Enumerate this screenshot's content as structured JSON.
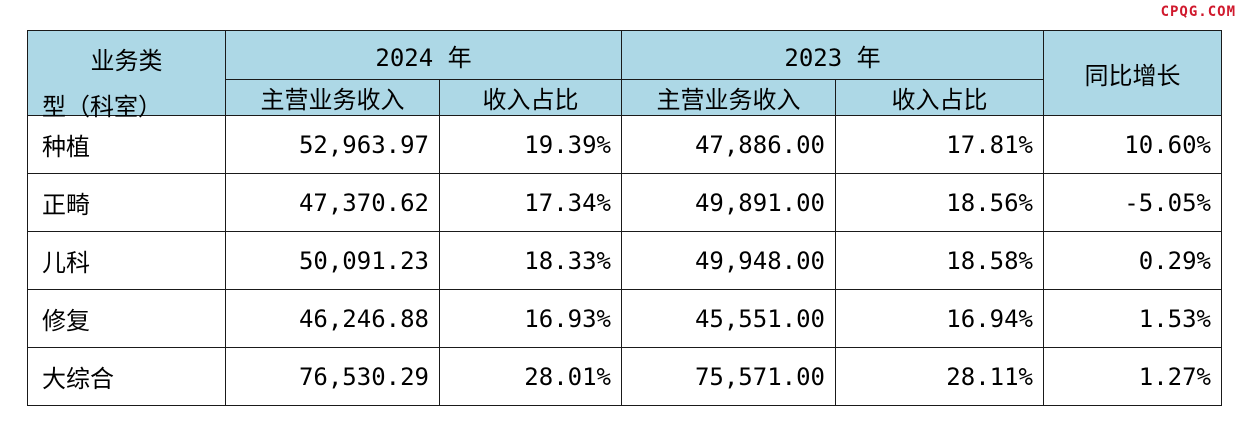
{
  "watermark": "CPQG.COM",
  "table": {
    "header": {
      "business_type_line1": "业务类",
      "business_type_line2": "型（科室）",
      "year_2024": "2024 年",
      "year_2023": "2023 年",
      "yoy": "同比增长",
      "revenue": "主营业务收入",
      "share": "收入占比"
    },
    "rows": [
      {
        "category": "种植",
        "rev_2024": "52,963.97",
        "share_2024": "19.39%",
        "rev_2023": "47,886.00",
        "share_2023": "17.81%",
        "yoy": "10.60%"
      },
      {
        "category": "正畸",
        "rev_2024": "47,370.62",
        "share_2024": "17.34%",
        "rev_2023": "49,891.00",
        "share_2023": "18.56%",
        "yoy": "-5.05%"
      },
      {
        "category": "儿科",
        "rev_2024": "50,091.23",
        "share_2024": "18.33%",
        "rev_2023": "49,948.00",
        "share_2023": "18.58%",
        "yoy": "0.29%"
      },
      {
        "category": "修复",
        "rev_2024": "46,246.88",
        "share_2024": "16.93%",
        "rev_2023": "45,551.00",
        "share_2023": "16.94%",
        "yoy": "1.53%"
      },
      {
        "category": "大综合",
        "rev_2024": "76,530.29",
        "share_2024": "28.01%",
        "rev_2023": "75,571.00",
        "share_2023": "28.11%",
        "yoy": "1.27%"
      }
    ]
  }
}
